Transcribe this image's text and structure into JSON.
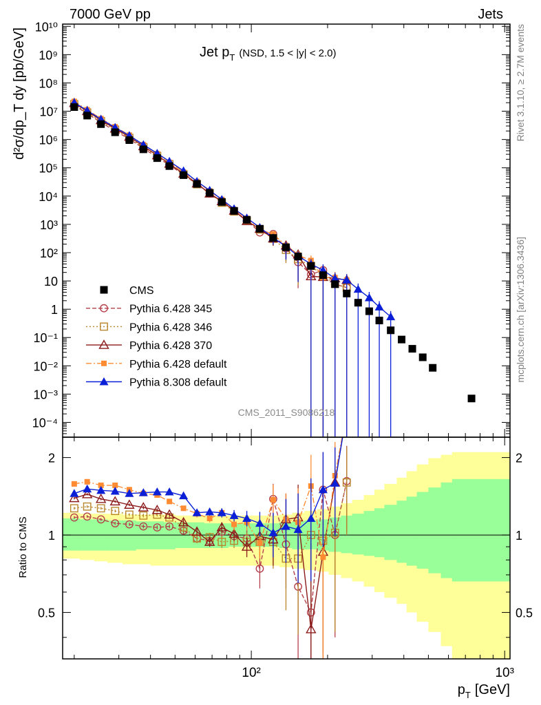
{
  "header": {
    "left": "7000 GeV pp",
    "right": "Jets"
  },
  "side_labels": {
    "rivet": "Rivet 3.1.10, ≥ 2.7M events",
    "mcplots": "mcplots.cern.ch [arXiv:1306.3436]"
  },
  "watermark": "CMS_2011_S9086218",
  "colors": {
    "cms": "#000000",
    "p345": "#b5404a",
    "p346": "#b8862b",
    "p370": "#8b1a1a",
    "p6def": "#ff8c33",
    "p8def": "#0a1fd6",
    "band_inner": "#99ff99",
    "band_outer": "#ffff99"
  },
  "chart_data": {
    "type": "scatter",
    "title": "Jet p_T (NSD, 1.5 < |y| < 2.0)",
    "title_main": "Jet p",
    "title_sub": "T",
    "title_tail": "(NSD, 1.5 < |y| < 2.0)",
    "xlabel": "p_T [GeV]",
    "xlabel_main": "p",
    "xlabel_sub": "T",
    "xlabel_tail": "[GeV]",
    "ylabel": "d²σ/dp_T dy [pb/GeV]",
    "ratio_ylabel": "Ratio to CMS",
    "x_scale": "log",
    "xlim": [
      18,
      1050
    ],
    "ylim": [
      3e-05,
      12000000000.0
    ],
    "ratio_ylim": [
      0.33,
      2.4
    ],
    "x_tick_labels": [
      "10²",
      "10³"
    ],
    "y_tick_labels": [
      "10⁻⁴",
      "10⁻³",
      "10⁻²",
      "10⁻¹",
      "1",
      "10",
      "10²",
      "10³",
      "10⁴",
      "10⁵",
      "10⁶",
      "10⁷",
      "10⁸",
      "10⁹",
      "10¹⁰"
    ],
    "ratio_tick_labels": [
      "0.5",
      "1",
      "2"
    ],
    "legend_position": "lower-left",
    "cms": {
      "name": "CMS",
      "x": [
        20,
        22.5,
        25.5,
        29,
        33,
        37.5,
        42.5,
        47.5,
        54,
        61,
        68.5,
        76.5,
        85.5,
        96,
        108,
        122,
        137,
        153,
        172,
        192,
        214,
        238,
        264,
        292,
        320,
        355,
        392,
        432,
        475,
        520,
        740
      ],
      "y": [
        14000000.0,
        7000000.0,
        3500000.0,
        1800000.0,
        950000.0,
        450000.0,
        220000.0,
        115000.0,
        55000.0,
        27000.0,
        13000.0,
        6200.0,
        3000.0,
        1450.0,
        700.0,
        330.0,
        155.0,
        73.0,
        34.0,
        16.0,
        7.7,
        3.6,
        1.7,
        0.85,
        0.4,
        0.18,
        0.085,
        0.04,
        0.02,
        0.0085,
        0.0007
      ]
    },
    "bands": {
      "x_edges": [
        18,
        21,
        24,
        27,
        31,
        35,
        40,
        45,
        50,
        57,
        65,
        72,
        81,
        90,
        101,
        114,
        129,
        145,
        162,
        182,
        202,
        226,
        250,
        278,
        306,
        335,
        375,
        410,
        450,
        500,
        560,
        620,
        1050
      ],
      "inner": [
        [
          0.87,
          1.16
        ],
        [
          0.87,
          1.15
        ],
        [
          0.87,
          1.15
        ],
        [
          0.87,
          1.14
        ],
        [
          0.87,
          1.14
        ],
        [
          0.88,
          1.13
        ],
        [
          0.88,
          1.13
        ],
        [
          0.88,
          1.12
        ],
        [
          0.89,
          1.12
        ],
        [
          0.89,
          1.12
        ],
        [
          0.89,
          1.11
        ],
        [
          0.89,
          1.11
        ],
        [
          0.9,
          1.11
        ],
        [
          0.9,
          1.11
        ],
        [
          0.9,
          1.11
        ],
        [
          0.9,
          1.11
        ],
        [
          0.89,
          1.12
        ],
        [
          0.88,
          1.13
        ],
        [
          0.88,
          1.14
        ],
        [
          0.87,
          1.15
        ],
        [
          0.86,
          1.17
        ],
        [
          0.85,
          1.19
        ],
        [
          0.84,
          1.21
        ],
        [
          0.83,
          1.24
        ],
        [
          0.82,
          1.27
        ],
        [
          0.8,
          1.31
        ],
        [
          0.78,
          1.36
        ],
        [
          0.76,
          1.41
        ],
        [
          0.74,
          1.47
        ],
        [
          0.71,
          1.53
        ],
        [
          0.68,
          1.6
        ],
        [
          0.66,
          1.65
        ]
      ],
      "outer": [
        [
          0.81,
          1.22
        ],
        [
          0.8,
          1.21
        ],
        [
          0.79,
          1.21
        ],
        [
          0.78,
          1.21
        ],
        [
          0.77,
          1.2
        ],
        [
          0.77,
          1.2
        ],
        [
          0.76,
          1.2
        ],
        [
          0.76,
          1.2
        ],
        [
          0.76,
          1.19
        ],
        [
          0.76,
          1.19
        ],
        [
          0.76,
          1.19
        ],
        [
          0.76,
          1.19
        ],
        [
          0.76,
          1.19
        ],
        [
          0.76,
          1.19
        ],
        [
          0.76,
          1.19
        ],
        [
          0.76,
          1.19
        ],
        [
          0.75,
          1.2
        ],
        [
          0.74,
          1.22
        ],
        [
          0.73,
          1.24
        ],
        [
          0.72,
          1.26
        ],
        [
          0.7,
          1.29
        ],
        [
          0.68,
          1.33
        ],
        [
          0.66,
          1.37
        ],
        [
          0.63,
          1.43
        ],
        [
          0.6,
          1.5
        ],
        [
          0.57,
          1.58
        ],
        [
          0.54,
          1.67
        ],
        [
          0.5,
          1.77
        ],
        [
          0.46,
          1.88
        ],
        [
          0.42,
          1.99
        ],
        [
          0.37,
          2.05
        ],
        [
          0.33,
          2.1
        ]
      ]
    },
    "series": [
      {
        "key": "p345",
        "name": "Pythia 6.428 345",
        "marker": "circle-open",
        "dash": "6,3",
        "x": [
          20,
          22.5,
          25.5,
          29,
          33,
          37.5,
          42.5,
          47.5,
          54,
          61,
          68.5,
          76.5,
          85.5,
          96,
          108,
          122,
          137,
          153,
          172,
          192,
          214,
          238
        ],
        "ratio": [
          1.17,
          1.18,
          1.15,
          1.11,
          1.1,
          1.08,
          1.07,
          1.08,
          1.04,
          0.97,
          0.95,
          1.03,
          0.99,
          0.97,
          0.74,
          1.38,
          0.92,
          0.63,
          0.5,
          1.5,
          1.0,
          1.62
        ],
        "ratio_err": [
          0.015,
          0.015,
          0.015,
          0.015,
          0.015,
          0.02,
          0.02,
          0.02,
          0.03,
          0.04,
          0.04,
          0.05,
          0.06,
          0.08,
          0.12,
          0.2,
          0.3,
          0.4,
          0.5,
          0.6,
          0.6,
          0.6
        ]
      },
      {
        "key": "p346",
        "name": "Pythia 6.428 346",
        "marker": "square-open",
        "dash": "2,3",
        "x": [
          20,
          22.5,
          25.5,
          29,
          33,
          37.5,
          42.5,
          47.5,
          54,
          61,
          68.5,
          76.5,
          85.5,
          96,
          108,
          122,
          137,
          153,
          172,
          192,
          214,
          238
        ],
        "ratio": [
          1.27,
          1.29,
          1.27,
          1.24,
          1.2,
          1.19,
          1.2,
          1.17,
          1.07,
          0.97,
          0.98,
          0.94,
          0.95,
          0.94,
          0.94,
          0.94,
          0.81,
          0.81,
          1.0,
          0.95,
          1.02,
          1.6
        ],
        "ratio_err": [
          0.015,
          0.015,
          0.015,
          0.015,
          0.015,
          0.02,
          0.02,
          0.02,
          0.03,
          0.04,
          0.04,
          0.05,
          0.06,
          0.08,
          0.12,
          0.2,
          0.3,
          0.4,
          0.5,
          0.6,
          0.6,
          0.6
        ]
      },
      {
        "key": "p370",
        "name": "Pythia 6.428 370",
        "marker": "triangle-open",
        "dash": "",
        "x": [
          20,
          22.5,
          25.5,
          29,
          33,
          37.5,
          42.5,
          47.5,
          54,
          61,
          68.5,
          76.5,
          85.5,
          96,
          108,
          122,
          137,
          153,
          172,
          192,
          214,
          238
        ],
        "ratio": [
          1.39,
          1.44,
          1.38,
          1.35,
          1.31,
          1.28,
          1.25,
          1.2,
          1.12,
          1.03,
          0.94,
          1.07,
          1.01,
          0.9,
          0.99,
          0.96,
          1.15,
          1.17,
          0.43,
          0.86,
          1.6,
          3.0
        ],
        "ratio_err": [
          0.015,
          0.015,
          0.015,
          0.015,
          0.015,
          0.02,
          0.02,
          0.02,
          0.03,
          0.04,
          0.04,
          0.05,
          0.06,
          0.08,
          0.12,
          0.2,
          0.3,
          0.4,
          0.5,
          0.6,
          0.6,
          0.6
        ]
      },
      {
        "key": "p6def",
        "name": "Pythia 6.428 default",
        "marker": "square-filled",
        "dash": "8,3,2,3",
        "x": [
          20,
          22.5,
          25.5,
          29,
          33,
          37.5,
          42.5,
          47.5,
          54,
          61,
          68.5,
          76.5,
          85.5,
          96,
          108,
          122,
          137,
          153,
          172,
          192,
          214,
          238
        ],
        "ratio": [
          1.58,
          1.61,
          1.56,
          1.56,
          1.5,
          1.45,
          1.43,
          1.35,
          1.27,
          1.21,
          1.16,
          1.22,
          1.1,
          1.12,
          0.93,
          1.37,
          1.15,
          1.12,
          1.55,
          0.82,
          1.7,
          3.0
        ],
        "ratio_err": [
          0.015,
          0.015,
          0.015,
          0.015,
          0.015,
          0.02,
          0.02,
          0.02,
          0.03,
          0.04,
          0.04,
          0.05,
          0.06,
          0.08,
          0.12,
          0.2,
          0.3,
          0.4,
          0.5,
          0.6,
          0.6,
          0.6
        ]
      },
      {
        "key": "p8def",
        "name": "Pythia 8.308 default",
        "marker": "triangle-filled",
        "dash": "",
        "x": [
          20,
          22.5,
          25.5,
          29,
          33,
          37.5,
          42.5,
          47.5,
          54,
          61,
          68.5,
          76.5,
          85.5,
          96,
          108,
          122,
          137,
          153,
          172,
          192,
          214,
          238,
          264,
          292,
          320,
          355
        ],
        "ratio": [
          1.45,
          1.51,
          1.49,
          1.48,
          1.45,
          1.46,
          1.47,
          1.47,
          1.42,
          1.22,
          1.23,
          1.22,
          1.19,
          1.16,
          1.11,
          1.02,
          1.08,
          1.05,
          1.16,
          1.5,
          1.59,
          3.0,
          3.0,
          3.0,
          3.0,
          3.0
        ],
        "ratio_err": [
          0.015,
          0.015,
          0.015,
          0.015,
          0.015,
          0.02,
          0.02,
          0.02,
          0.03,
          0.04,
          0.04,
          0.05,
          0.06,
          0.08,
          0.12,
          0.2,
          0.3,
          0.4,
          0.5,
          0.6,
          0.6,
          0.6,
          0.6,
          0.6,
          0.6,
          0.6
        ]
      }
    ]
  }
}
